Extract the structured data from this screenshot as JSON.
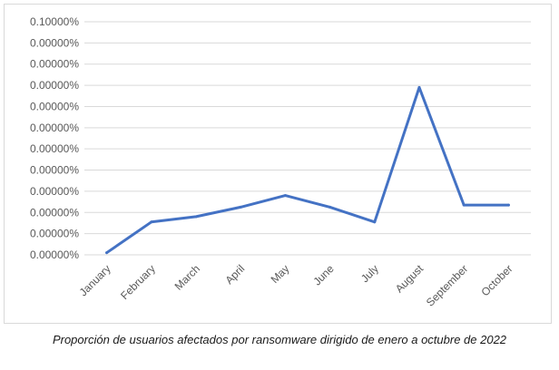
{
  "caption": "Proporción de usuarios afectados por ransomware dirigido de enero a octubre de 2022",
  "chart_data": {
    "type": "line",
    "title": "",
    "xlabel": "",
    "ylabel": "",
    "categories": [
      "January",
      "February",
      "March",
      "April",
      "May",
      "June",
      "July",
      "August",
      "September",
      "October"
    ],
    "y_tick_labels": [
      "0.00000%",
      "0.00000%",
      "0.00000%",
      "0.00000%",
      "0.00000%",
      "0.00000%",
      "0.00000%",
      "0.00000%",
      "0.00000%",
      "0.00000%",
      "0.00000%",
      "0.10000%"
    ],
    "ylim": [
      0,
      0.11
    ],
    "series": [
      {
        "values": [
          0.001,
          0.0155,
          0.018,
          0.0225,
          0.028,
          0.0225,
          0.0155,
          0.079,
          0.0235,
          0.0235
        ]
      }
    ],
    "grid": true,
    "legend": "none",
    "line_color": "#4472c4",
    "grid_color": "#d9d9d9",
    "text_color": "#595959"
  }
}
